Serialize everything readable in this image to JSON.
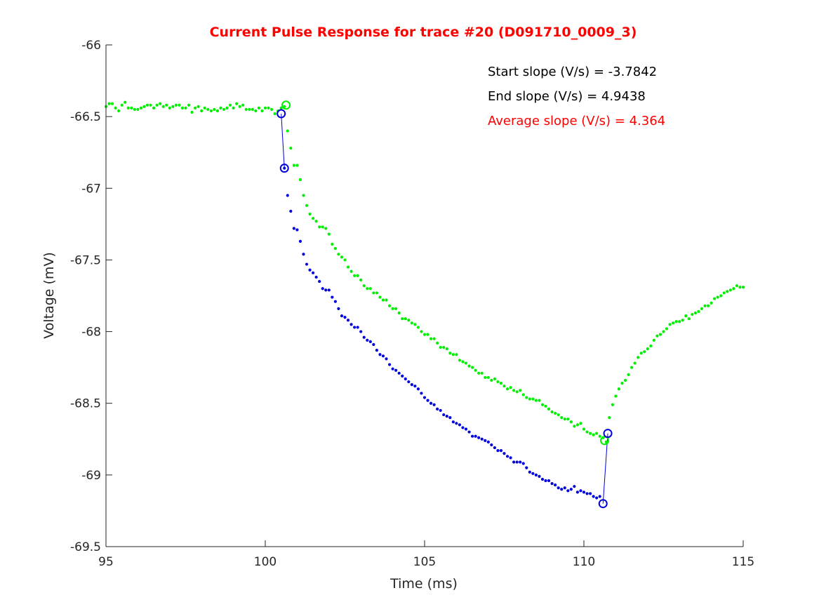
{
  "chart_data": {
    "type": "scatter",
    "title": "Current Pulse Response for trace #20 (D091710_0009_3)",
    "xlabel": "Time (ms)",
    "ylabel": "Voltage (mV)",
    "xlim": [
      95,
      115
    ],
    "ylim": [
      -69.5,
      -66
    ],
    "xticks": [
      "95",
      "100",
      "105",
      "110",
      "115"
    ],
    "yticks": [
      "-66",
      "-66.5",
      "-67",
      "-67.5",
      "-68",
      "-68.5",
      "-69",
      "-69.5"
    ],
    "grid": false,
    "colors": {
      "title": "#ff0000",
      "green": "#00ee00",
      "blue": "#0000dd",
      "axis": "#262626",
      "average": "#ff0000"
    },
    "annotations": [
      {
        "text": "Start slope (V/s) = -3.7842",
        "color": "#000000"
      },
      {
        "text": "End slope (V/s) = 4.9438",
        "color": "#000000"
      },
      {
        "text": "Average slope (V/s) = 4.364",
        "color": "#ff0000"
      }
    ],
    "series": [
      {
        "color": "#00ee00",
        "x": [
          95.0,
          95.1,
          95.2,
          95.3,
          95.4,
          95.5,
          95.6,
          95.7,
          95.8,
          95.9,
          96.0,
          96.1,
          96.2,
          96.3,
          96.4,
          96.5,
          96.6,
          96.7,
          96.8,
          96.9,
          97.0,
          97.1,
          97.2,
          97.3,
          97.4,
          97.5,
          97.6,
          97.7,
          97.8,
          97.9,
          98.0,
          98.1,
          98.2,
          98.3,
          98.4,
          98.5,
          98.6,
          98.7,
          98.8,
          98.9,
          99.0,
          99.1,
          99.2,
          99.3,
          99.4,
          99.5,
          99.6,
          99.7,
          99.8,
          99.9,
          100.0,
          100.1,
          100.2,
          100.3,
          100.4,
          100.5,
          100.6,
          100.7,
          100.8,
          100.9,
          101.0,
          101.1,
          101.2,
          101.3,
          101.4,
          101.5,
          101.6,
          101.7,
          101.8,
          101.9,
          102.0,
          102.1,
          102.2,
          102.3,
          102.4,
          102.5,
          102.6,
          102.7,
          102.8,
          102.9,
          103.0,
          103.1,
          103.2,
          103.3,
          103.4,
          103.5,
          103.6,
          103.7,
          103.8,
          103.9,
          104.0,
          104.1,
          104.2,
          104.3,
          104.4,
          104.5,
          104.6,
          104.7,
          104.8,
          104.9,
          105.0,
          105.1,
          105.2,
          105.3,
          105.4,
          105.5,
          105.6,
          105.7,
          105.8,
          105.9,
          106.0,
          106.1,
          106.2,
          106.3,
          106.4,
          106.5,
          106.6,
          106.7,
          106.8,
          106.9,
          107.0,
          107.1,
          107.2,
          107.3,
          107.4,
          107.5,
          107.6,
          107.7,
          107.8,
          107.9,
          108.0,
          108.1,
          108.2,
          108.3,
          108.4,
          108.5,
          108.6,
          108.7,
          108.8,
          108.9,
          109.0,
          109.1,
          109.2,
          109.3,
          109.4,
          109.5,
          109.6,
          109.7,
          109.8,
          109.9,
          110.0,
          110.1,
          110.2,
          110.3,
          110.4,
          110.5,
          110.6,
          110.7,
          110.8,
          110.9,
          111.0,
          111.1,
          111.2,
          111.3,
          111.4,
          111.5,
          111.6,
          111.7,
          111.8,
          111.9,
          112.0,
          112.1,
          112.2,
          112.3,
          112.4,
          112.5,
          112.6,
          112.7,
          112.8,
          112.9,
          113.0,
          113.1,
          113.2,
          113.3,
          113.4,
          113.5,
          113.6,
          113.7,
          113.8,
          113.9,
          114.0,
          114.1,
          114.2,
          114.3,
          114.4,
          114.5,
          114.6,
          114.7,
          114.8,
          114.9,
          115.0
        ],
        "y": [
          -66.43,
          -66.41,
          -66.41,
          -66.44,
          -66.46,
          -66.42,
          -66.4,
          -66.44,
          -66.44,
          -66.45,
          -66.45,
          -66.44,
          -66.43,
          -66.42,
          -66.42,
          -66.44,
          -66.42,
          -66.41,
          -66.43,
          -66.42,
          -66.44,
          -66.43,
          -66.42,
          -66.42,
          -66.44,
          -66.44,
          -66.42,
          -66.47,
          -66.44,
          -66.43,
          -66.46,
          -66.44,
          -66.45,
          -66.46,
          -66.45,
          -66.46,
          -66.44,
          -66.45,
          -66.44,
          -66.42,
          -66.44,
          -66.41,
          -66.43,
          -66.42,
          -66.45,
          -66.45,
          -66.45,
          -66.46,
          -66.44,
          -66.46,
          -66.44,
          -66.44,
          -66.45,
          -66.48,
          -66.46,
          -66.44,
          -66.43,
          -66.6,
          -66.72,
          -66.84,
          -66.84,
          -66.94,
          -67.05,
          -67.12,
          -67.18,
          -67.21,
          -67.23,
          -67.27,
          -67.27,
          -67.28,
          -67.32,
          -67.39,
          -67.42,
          -67.46,
          -67.48,
          -67.5,
          -67.55,
          -67.58,
          -67.61,
          -67.61,
          -67.64,
          -67.68,
          -67.7,
          -67.7,
          -67.73,
          -67.73,
          -67.76,
          -67.78,
          -67.78,
          -67.82,
          -67.84,
          -67.84,
          -67.87,
          -67.91,
          -67.91,
          -67.92,
          -67.94,
          -67.95,
          -67.97,
          -68.0,
          -68.02,
          -68.02,
          -68.05,
          -68.05,
          -68.08,
          -68.11,
          -68.11,
          -68.12,
          -68.15,
          -68.16,
          -68.16,
          -68.2,
          -68.21,
          -68.22,
          -68.24,
          -68.25,
          -68.27,
          -68.29,
          -68.29,
          -68.32,
          -68.32,
          -68.34,
          -68.33,
          -68.35,
          -68.36,
          -68.38,
          -68.4,
          -68.39,
          -68.41,
          -68.42,
          -68.41,
          -68.44,
          -68.46,
          -68.47,
          -68.47,
          -68.48,
          -68.48,
          -68.51,
          -68.52,
          -68.54,
          -68.56,
          -68.57,
          -68.58,
          -68.6,
          -68.61,
          -68.61,
          -68.63,
          -68.66,
          -68.65,
          -68.64,
          -68.68,
          -68.7,
          -68.71,
          -68.72,
          -68.71,
          -68.73,
          -68.74,
          -68.77,
          -68.6,
          -68.51,
          -68.45,
          -68.4,
          -68.36,
          -68.34,
          -68.3,
          -68.25,
          -68.22,
          -68.18,
          -68.15,
          -68.14,
          -68.12,
          -68.1,
          -68.06,
          -68.03,
          -68.02,
          -68.0,
          -67.98,
          -67.95,
          -67.94,
          -67.93,
          -67.93,
          -67.92,
          -67.89,
          -67.91,
          -67.88,
          -67.87,
          -67.86,
          -67.84,
          -67.82,
          -67.82,
          -67.8,
          -67.77,
          -67.76,
          -67.75,
          -67.73,
          -67.72,
          -67.71,
          -67.7,
          -67.68,
          -67.69,
          -67.69
        ]
      },
      {
        "color": "#0000dd",
        "x": [
          100.6,
          100.7,
          100.8,
          100.9,
          101.0,
          101.1,
          101.2,
          101.3,
          101.4,
          101.5,
          101.6,
          101.7,
          101.8,
          101.9,
          102.0,
          102.1,
          102.2,
          102.3,
          102.4,
          102.5,
          102.6,
          102.7,
          102.8,
          102.9,
          103.0,
          103.1,
          103.2,
          103.3,
          103.4,
          103.5,
          103.6,
          103.7,
          103.8,
          103.9,
          104.0,
          104.1,
          104.2,
          104.3,
          104.4,
          104.5,
          104.6,
          104.7,
          104.8,
          104.9,
          105.0,
          105.1,
          105.2,
          105.3,
          105.4,
          105.5,
          105.6,
          105.7,
          105.8,
          105.9,
          106.0,
          106.1,
          106.2,
          106.3,
          106.4,
          106.5,
          106.6,
          106.7,
          106.8,
          106.9,
          107.0,
          107.1,
          107.2,
          107.3,
          107.4,
          107.5,
          107.6,
          107.7,
          107.8,
          107.9,
          108.0,
          108.1,
          108.2,
          108.3,
          108.4,
          108.5,
          108.6,
          108.7,
          108.8,
          108.9,
          109.0,
          109.1,
          109.2,
          109.3,
          109.4,
          109.5,
          109.6,
          109.7,
          109.8,
          109.9,
          110.0,
          110.1,
          110.2,
          110.3,
          110.4,
          110.5
        ],
        "y": [
          -66.86,
          -67.05,
          -67.16,
          -67.28,
          -67.29,
          -67.37,
          -67.46,
          -67.53,
          -67.57,
          -67.59,
          -67.62,
          -67.65,
          -67.7,
          -67.71,
          -67.71,
          -67.76,
          -67.79,
          -67.84,
          -67.89,
          -67.9,
          -67.92,
          -67.95,
          -67.97,
          -67.97,
          -68.0,
          -68.04,
          -68.06,
          -68.07,
          -68.09,
          -68.13,
          -68.16,
          -68.17,
          -68.19,
          -68.23,
          -68.26,
          -68.27,
          -68.29,
          -68.31,
          -68.33,
          -68.35,
          -68.37,
          -68.38,
          -68.4,
          -68.43,
          -68.46,
          -68.48,
          -68.5,
          -68.51,
          -68.54,
          -68.55,
          -68.58,
          -68.59,
          -68.6,
          -68.63,
          -68.64,
          -68.65,
          -68.67,
          -68.68,
          -68.7,
          -68.73,
          -68.73,
          -68.74,
          -68.75,
          -68.76,
          -68.77,
          -68.79,
          -68.81,
          -68.83,
          -68.83,
          -68.85,
          -68.87,
          -68.88,
          -68.91,
          -68.91,
          -68.91,
          -68.92,
          -68.95,
          -68.98,
          -68.99,
          -69.0,
          -69.01,
          -69.03,
          -69.04,
          -69.04,
          -69.06,
          -69.07,
          -69.09,
          -69.1,
          -69.09,
          -69.11,
          -69.1,
          -69.08,
          -69.12,
          -69.11,
          -69.12,
          -69.13,
          -69.13,
          -69.15,
          -69.16,
          -69.15
        ]
      }
    ],
    "markers": [
      {
        "color": "#00ee00",
        "x": 100.65,
        "y": -66.42
      },
      {
        "color": "#00ee00",
        "x": 110.65,
        "y": -68.76
      },
      {
        "color": "#0000dd",
        "x": 100.5,
        "y": -66.48
      },
      {
        "color": "#0000dd",
        "x": 100.6,
        "y": -66.86
      },
      {
        "color": "#0000dd",
        "x": 110.6,
        "y": -69.2
      },
      {
        "color": "#0000dd",
        "x": 110.75,
        "y": -68.71
      }
    ],
    "segments": [
      {
        "color": "#0000dd",
        "x": [
          100.5,
          100.6
        ],
        "y": [
          -66.48,
          -66.86
        ]
      },
      {
        "color": "#0000dd",
        "x": [
          110.6,
          110.75
        ],
        "y": [
          -69.2,
          -68.71
        ]
      }
    ]
  }
}
